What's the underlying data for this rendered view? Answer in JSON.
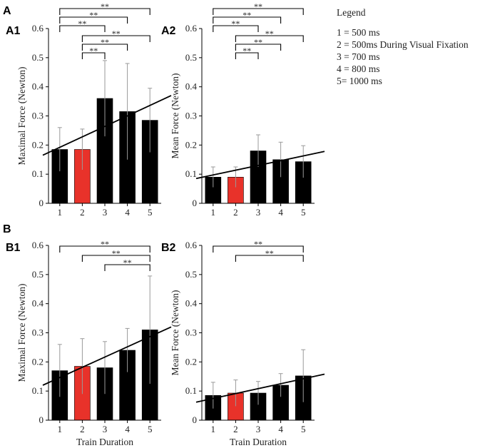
{
  "figure": {
    "section_labels": [
      "A",
      "B"
    ]
  },
  "legend": {
    "title": "Legend",
    "entries": [
      {
        "text": "1 = 500 ms",
        "color": "#222222"
      },
      {
        "text": "2 = 500ms During Visual Fixation",
        "color": "#e8322a"
      },
      {
        "text": "3 = 700 ms",
        "color": "#222222"
      },
      {
        "text": "4 = 800 ms",
        "color": "#222222"
      },
      {
        "text": "5= 1000 ms",
        "color": "#222222"
      }
    ]
  },
  "colors": {
    "bar": "#000000",
    "highlight_bar": "#e8322a",
    "highlight_tick": "#e8322a",
    "axis": "#000000",
    "text": "#222222"
  },
  "chart_data": [
    {
      "id": "A1",
      "panel_label": "A1",
      "type": "bar",
      "categories": [
        "1",
        "2",
        "3",
        "4",
        "5"
      ],
      "highlight_index": 1,
      "values": [
        0.185,
        0.185,
        0.36,
        0.315,
        0.285
      ],
      "errors": [
        0.075,
        0.07,
        0.13,
        0.165,
        0.11
      ],
      "trend": {
        "y_start": 0.165,
        "y_end": 0.37
      },
      "significance": [
        {
          "from": 1,
          "to": 5,
          "label": "**"
        },
        {
          "from": 1,
          "to": 4,
          "label": "**"
        },
        {
          "from": 1,
          "to": 3,
          "label": "**"
        },
        {
          "from": 2,
          "to": 5,
          "label": "**"
        },
        {
          "from": 2,
          "to": 4,
          "label": "**"
        },
        {
          "from": 2,
          "to": 3,
          "label": "**"
        }
      ],
      "xlabel": "",
      "ylabel": "Maximal Force (Newton)",
      "ylim": [
        0,
        0.6
      ],
      "yticks": [
        "0",
        "0.1",
        "0.2",
        "0.3",
        "0.4",
        "0.5",
        "0.6"
      ]
    },
    {
      "id": "A2",
      "panel_label": "A2",
      "type": "bar",
      "categories": [
        "1",
        "2",
        "3",
        "4",
        "5"
      ],
      "highlight_index": 1,
      "values": [
        0.09,
        0.09,
        0.18,
        0.15,
        0.143
      ],
      "errors": [
        0.035,
        0.035,
        0.055,
        0.06,
        0.055
      ],
      "trend": {
        "y_start": 0.085,
        "y_end": 0.178
      },
      "significance": [
        {
          "from": 1,
          "to": 5,
          "label": "**"
        },
        {
          "from": 1,
          "to": 4,
          "label": "**"
        },
        {
          "from": 1,
          "to": 3,
          "label": "**"
        },
        {
          "from": 2,
          "to": 5,
          "label": "**"
        },
        {
          "from": 2,
          "to": 4,
          "label": "**"
        },
        {
          "from": 2,
          "to": 3,
          "label": "**"
        }
      ],
      "xlabel": "",
      "ylabel": "Mean Force (Newton)",
      "ylim": [
        0,
        0.6
      ],
      "yticks": [
        "0",
        "0.1",
        "0.2",
        "0.3",
        "0.4",
        "0.5",
        "0.6"
      ]
    },
    {
      "id": "B1",
      "panel_label": "B1",
      "type": "bar",
      "categories": [
        "1",
        "2",
        "3",
        "4",
        "5"
      ],
      "highlight_index": 1,
      "values": [
        0.17,
        0.185,
        0.18,
        0.24,
        0.31
      ],
      "errors": [
        0.09,
        0.095,
        0.09,
        0.075,
        0.185
      ],
      "trend": {
        "y_start": 0.12,
        "y_end": 0.32
      },
      "significance": [
        {
          "from": 1,
          "to": 5,
          "label": "**"
        },
        {
          "from": 2,
          "to": 5,
          "label": "**"
        },
        {
          "from": 3,
          "to": 5,
          "label": "**"
        }
      ],
      "xlabel": "Train Duration",
      "ylabel": "Maximal Force (Newton)",
      "ylim": [
        0,
        0.6
      ],
      "yticks": [
        "0",
        "0.1",
        "0.2",
        "0.3",
        "0.4",
        "0.5",
        "0.6"
      ]
    },
    {
      "id": "B2",
      "panel_label": "B2",
      "type": "bar",
      "categories": [
        "1",
        "2",
        "3",
        "4",
        "5"
      ],
      "highlight_index": 1,
      "values": [
        0.085,
        0.093,
        0.093,
        0.12,
        0.152
      ],
      "errors": [
        0.045,
        0.045,
        0.04,
        0.04,
        0.09
      ],
      "trend": {
        "y_start": 0.062,
        "y_end": 0.158
      },
      "significance": [
        {
          "from": 1,
          "to": 5,
          "label": "**"
        },
        {
          "from": 2,
          "to": 5,
          "label": "**"
        }
      ],
      "xlabel": "Train Duration",
      "ylabel": "Mean Force (Newton)",
      "ylim": [
        0,
        0.6
      ],
      "yticks": [
        "0",
        "0.1",
        "0.2",
        "0.3",
        "0.4",
        "0.5",
        "0.6"
      ]
    }
  ]
}
